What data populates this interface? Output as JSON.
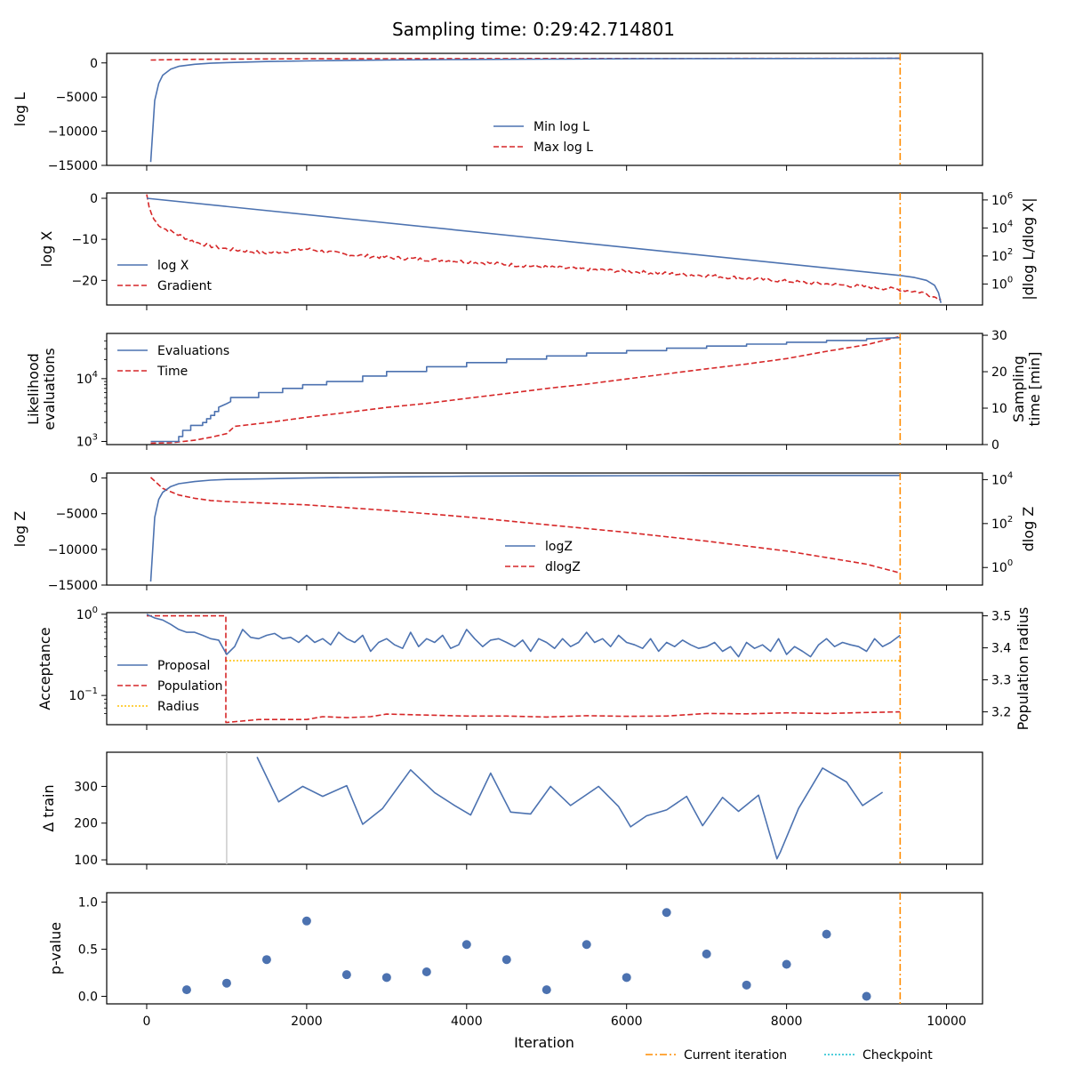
{
  "title": "Sampling time: 0:29:42.714801",
  "xlabel": "Iteration",
  "x_ticks": [
    0,
    2000,
    4000,
    6000,
    8000,
    10000
  ],
  "x_range": [
    -500,
    10450
  ],
  "current_iteration": 9420,
  "figure_legend": {
    "current": "Current iteration",
    "checkpoint": "Checkpoint"
  },
  "colors": {
    "blue": "#4c72b0",
    "red": "#d62728",
    "orange": "#ff8c00",
    "yellow": "#ffc107",
    "gray": "#c8c8c8",
    "checkpoint": "#17becf"
  },
  "chart_data": [
    {
      "type": "line",
      "panel": "logL",
      "ylabel": "log L",
      "ylim": [
        -15000,
        1400
      ],
      "y_ticks": [
        0,
        -5000,
        -10000,
        -15000
      ],
      "legend": [
        "Min log L",
        "Max log L"
      ],
      "series": [
        {
          "name": "Min log L",
          "x": [
            50,
            100,
            150,
            200,
            300,
            400,
            600,
            800,
            1000,
            1500,
            2000,
            3000,
            4000,
            5000,
            6000,
            7000,
            8000,
            9000,
            9420
          ],
          "y": [
            -14500,
            -5500,
            -3000,
            -1800,
            -900,
            -500,
            -200,
            -50,
            50,
            200,
            300,
            420,
            500,
            560,
            600,
            630,
            650,
            660,
            665
          ]
        },
        {
          "name": "Max log L",
          "x": [
            50,
            500,
            1000,
            2000,
            4000,
            6000,
            8000,
            9420
          ],
          "y": [
            420,
            520,
            560,
            600,
            630,
            650,
            660,
            665
          ]
        }
      ]
    },
    {
      "type": "line",
      "panel": "logX",
      "ylabel": "log X",
      "ylabel_right": "|dlog L/dlog X|",
      "ylim": [
        -26,
        1.3
      ],
      "y_ticks": [
        0,
        -10,
        -20
      ],
      "y2_log_range": [
        -1.5,
        6.5
      ],
      "y2_ticks": [
        "10^6",
        "10^4",
        "10^2",
        "10^0"
      ],
      "y2_tick_exponents": [
        6,
        4,
        2,
        0
      ],
      "legend": [
        "log X",
        "Gradient"
      ],
      "series": [
        {
          "name": "log X",
          "x": [
            0,
            9420,
            9600,
            9750,
            9850,
            9900,
            9930
          ],
          "y": [
            0,
            -18.8,
            -19.3,
            -20.0,
            -21.2,
            -23.0,
            -25.5
          ]
        },
        {
          "name": "Gradient",
          "x": [
            0,
            30,
            60,
            100,
            200,
            400,
            600,
            800,
            1000,
            1500,
            2000,
            2500,
            3000,
            4000,
            5000,
            6000,
            7000,
            8000,
            9000,
            9420,
            9700,
            9930
          ],
          "y": [
            6.4,
            5.5,
            5.0,
            4.5,
            4.0,
            3.5,
            3.0,
            2.7,
            2.5,
            2.2,
            2.5,
            2.1,
            1.9,
            1.6,
            1.2,
            0.9,
            0.6,
            0.2,
            -0.2,
            -0.4,
            -0.6,
            -1.1
          ]
        }
      ]
    },
    {
      "type": "line",
      "panel": "evaluations",
      "ylabel": "Likelihood evaluations",
      "ylabel_lines": [
        "Likelihood",
        "evaluations"
      ],
      "ylabel_right": "Sampling time [min]",
      "ylabel_right_lines": [
        "Sampling",
        "time [min]"
      ],
      "y_log_range": [
        2.95,
        4.72
      ],
      "y_ticks": [
        "10^4",
        "10^3"
      ],
      "y_tick_exponents": [
        4,
        3
      ],
      "y2_range": [
        0,
        30.5
      ],
      "y2_ticks": [
        30,
        20,
        10,
        0
      ],
      "legend": [
        "Evaluations",
        "Time"
      ],
      "series": [
        {
          "name": "Evaluations",
          "x": [
            50,
            400,
            400,
            450,
            450,
            550,
            550,
            700,
            700,
            750,
            750,
            800,
            800,
            850,
            850,
            900,
            900,
            1000,
            1050,
            1050,
            1400,
            1400,
            1700,
            1700,
            1950,
            1950,
            2250,
            2250,
            2700,
            2700,
            3000,
            3000,
            3500,
            3500,
            4000,
            4000,
            4500,
            4500,
            5000,
            5000,
            5500,
            5500,
            6000,
            6000,
            6500,
            6500,
            7000,
            7000,
            7500,
            7500,
            8000,
            8000,
            8500,
            8500,
            9000,
            9000,
            9420
          ],
          "y": [
            1000,
            1000,
            1200,
            1200,
            1500,
            1500,
            1800,
            1800,
            2000,
            2000,
            2300,
            2300,
            2600,
            2600,
            3000,
            3000,
            3500,
            4000,
            4300,
            5000,
            5000,
            6000,
            6000,
            7000,
            7000,
            8000,
            8000,
            9000,
            9000,
            11000,
            11000,
            13000,
            13000,
            15500,
            15500,
            18000,
            18000,
            20500,
            20500,
            23000,
            23000,
            25500,
            25500,
            28000,
            28000,
            30500,
            30500,
            33000,
            33000,
            35500,
            35500,
            38000,
            38000,
            40500,
            40500,
            43000,
            45000
          ]
        },
        {
          "name": "Time",
          "x": [
            50,
            300,
            600,
            800,
            1000,
            1100,
            1500,
            2000,
            2500,
            3000,
            3500,
            4000,
            4500,
            5000,
            5500,
            6000,
            6500,
            7000,
            7500,
            8000,
            8500,
            9000,
            9420
          ],
          "y": [
            0.4,
            0.5,
            1.2,
            2.0,
            3.0,
            5.0,
            6.0,
            7.5,
            8.8,
            10.2,
            11.3,
            12.7,
            14.0,
            15.4,
            16.6,
            18.0,
            19.4,
            20.8,
            22.1,
            23.6,
            25.6,
            27.4,
            29.7
          ]
        }
      ]
    },
    {
      "type": "line",
      "panel": "logZ",
      "ylabel": "log Z",
      "ylabel_right": "dlog Z",
      "ylim": [
        -15000,
        700
      ],
      "y_ticks": [
        0,
        -5000,
        -10000,
        -15000
      ],
      "y2_log_range": [
        -0.8,
        4.3
      ],
      "y2_ticks": [
        "10^4",
        "10^2",
        "10^0"
      ],
      "y2_tick_exponents": [
        4,
        2,
        0
      ],
      "legend": [
        "logZ",
        "dlogZ"
      ],
      "series": [
        {
          "name": "logZ",
          "x": [
            50,
            100,
            150,
            200,
            300,
            400,
            600,
            800,
            1000,
            1500,
            2000,
            3000,
            4000,
            5000,
            6000,
            7000,
            8000,
            9000,
            9420
          ],
          "y": [
            -14500,
            -5500,
            -3000,
            -2000,
            -1200,
            -800,
            -500,
            -300,
            -200,
            -100,
            0,
            150,
            250,
            300,
            330,
            350,
            360,
            365,
            367
          ]
        },
        {
          "name": "dlogZ",
          "x": [
            50,
            200,
            400,
            600,
            800,
            1000,
            2000,
            3000,
            4000,
            5000,
            6000,
            7000,
            8000,
            9000,
            9420
          ],
          "y": [
            4.1,
            3.6,
            3.3,
            3.15,
            3.05,
            3.0,
            2.85,
            2.6,
            2.3,
            1.95,
            1.6,
            1.2,
            0.75,
            0.15,
            -0.25
          ]
        }
      ]
    },
    {
      "type": "line",
      "panel": "acceptance",
      "ylabel": "Acceptance",
      "ylabel_right": "Population radius",
      "y_log_range": [
        -1.36,
        0.02
      ],
      "y_ticks": [
        "10^0",
        "10^-1"
      ],
      "y_tick_exponents": [
        0,
        -1
      ],
      "y2_range": [
        3.16,
        3.51
      ],
      "y2_ticks": [
        3.5,
        3.4,
        3.3,
        3.2
      ],
      "legend": [
        "Proposal",
        "Population",
        "Radius"
      ],
      "series": [
        {
          "name": "Proposal",
          "x": [
            0,
            100,
            200,
            300,
            400,
            500,
            600,
            700,
            800,
            900,
            1000,
            1100,
            1200,
            1300,
            1400,
            1500,
            1600,
            1700,
            1800,
            1900,
            2000,
            2100,
            2200,
            2300,
            2400,
            2500,
            2600,
            2700,
            2800,
            2900,
            3000,
            3100,
            3200,
            3300,
            3400,
            3500,
            3600,
            3700,
            3800,
            3900,
            4000,
            4100,
            4200,
            4300,
            4400,
            4500,
            4600,
            4700,
            4800,
            4900,
            5000,
            5100,
            5200,
            5300,
            5400,
            5500,
            5600,
            5700,
            5800,
            5900,
            6000,
            6100,
            6200,
            6300,
            6400,
            6500,
            6600,
            6700,
            6800,
            6900,
            7000,
            7100,
            7200,
            7300,
            7400,
            7500,
            7600,
            7700,
            7800,
            7900,
            8000,
            8100,
            8200,
            8300,
            8400,
            8500,
            8600,
            8700,
            8800,
            8900,
            9000,
            9100,
            9200,
            9300,
            9420
          ],
          "y": [
            1.0,
            0.9,
            0.85,
            0.75,
            0.65,
            0.6,
            0.6,
            0.55,
            0.5,
            0.48,
            0.32,
            0.4,
            0.65,
            0.52,
            0.5,
            0.55,
            0.58,
            0.5,
            0.52,
            0.45,
            0.55,
            0.45,
            0.5,
            0.42,
            0.6,
            0.5,
            0.45,
            0.55,
            0.35,
            0.45,
            0.5,
            0.42,
            0.38,
            0.6,
            0.4,
            0.5,
            0.45,
            0.55,
            0.38,
            0.42,
            0.65,
            0.5,
            0.4,
            0.48,
            0.5,
            0.45,
            0.4,
            0.48,
            0.35,
            0.5,
            0.45,
            0.38,
            0.5,
            0.4,
            0.45,
            0.6,
            0.45,
            0.5,
            0.4,
            0.55,
            0.45,
            0.42,
            0.38,
            0.5,
            0.35,
            0.45,
            0.4,
            0.48,
            0.42,
            0.38,
            0.4,
            0.45,
            0.35,
            0.4,
            0.3,
            0.45,
            0.38,
            0.42,
            0.35,
            0.5,
            0.32,
            0.4,
            0.35,
            0.3,
            0.42,
            0.5,
            0.4,
            0.45,
            0.42,
            0.4,
            0.35,
            0.5,
            0.4,
            0.45,
            0.55
          ]
        },
        {
          "name": "Population",
          "x": [
            0,
            990,
            990,
            1000,
            1400,
            2000,
            2200,
            2500,
            2800,
            3000,
            3500,
            4000,
            4500,
            5000,
            5500,
            6000,
            6500,
            7000,
            7500,
            8000,
            8500,
            9000,
            9420
          ],
          "y": [
            3.5,
            3.5,
            3.167,
            3.167,
            3.176,
            3.176,
            3.185,
            3.182,
            3.185,
            3.193,
            3.19,
            3.187,
            3.187,
            3.184,
            3.188,
            3.186,
            3.187,
            3.195,
            3.194,
            3.197,
            3.195,
            3.198,
            3.2
          ]
        },
        {
          "name": "Radius",
          "x": [
            990,
            9420
          ],
          "y": [
            3.36,
            3.36
          ]
        }
      ]
    },
    {
      "type": "line",
      "panel": "train",
      "ylabel": "Δ train",
      "ylim": [
        88,
        393
      ],
      "y_ticks": [
        300,
        200,
        100
      ],
      "legend": [],
      "checkpoint_line_x": 1000,
      "series": [
        {
          "name": "Δ train",
          "x": [
            1380,
            1650,
            1950,
            2200,
            2500,
            2700,
            2950,
            3300,
            3600,
            3850,
            4050,
            4300,
            4550,
            4800,
            5050,
            5300,
            5650,
            5900,
            6050,
            6250,
            6500,
            6750,
            6950,
            7200,
            7400,
            7650,
            7880,
            7920,
            8150,
            8450,
            8750,
            8950,
            9200
          ],
          "y": [
            380,
            258,
            300,
            273,
            302,
            197,
            240,
            345,
            283,
            248,
            222,
            336,
            230,
            225,
            300,
            248,
            300,
            245,
            190,
            220,
            236,
            273,
            193,
            270,
            232,
            276,
            103,
            120,
            240,
            350,
            312,
            248,
            284
          ]
        }
      ]
    },
    {
      "type": "scatter",
      "panel": "pvalue",
      "ylabel": "p-value",
      "ylim": [
        -0.08,
        1.1
      ],
      "y_ticks": [
        1.0,
        0.5,
        0.0
      ],
      "legend": [],
      "series": [
        {
          "name": "p-value",
          "x": [
            500,
            1000,
            1500,
            2000,
            2500,
            3000,
            3500,
            4000,
            4500,
            5000,
            5500,
            6000,
            6500,
            7000,
            7500,
            8000,
            8500,
            9000
          ],
          "y": [
            0.07,
            0.14,
            0.39,
            0.8,
            0.23,
            0.2,
            0.26,
            0.55,
            0.39,
            0.07,
            0.55,
            0.2,
            0.89,
            0.45,
            0.12,
            0.34,
            0.66,
            0.0
          ]
        }
      ]
    }
  ]
}
